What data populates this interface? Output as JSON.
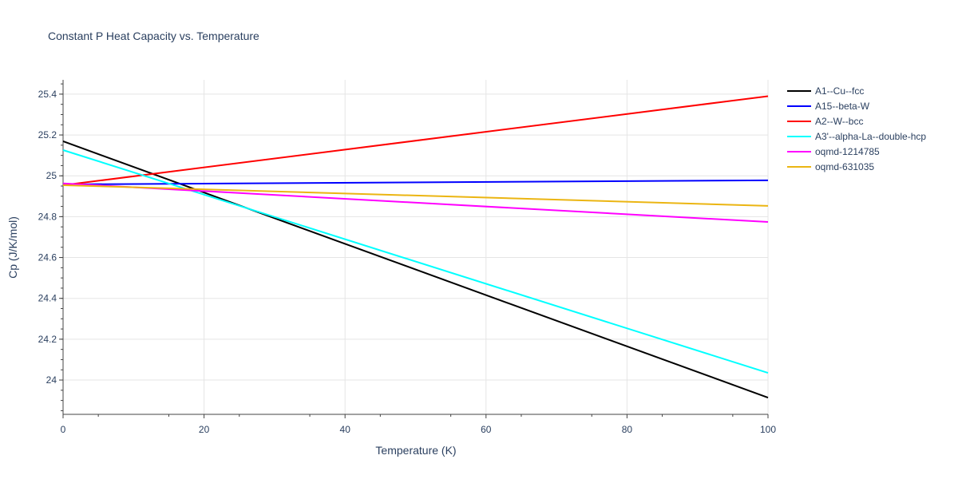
{
  "chart_data": {
    "type": "line",
    "title": "Constant P Heat Capacity vs. Temperature",
    "xlabel": "Temperature (K)",
    "ylabel": "Cp (J/K/mol)",
    "xlim": [
      0,
      100
    ],
    "ylim": [
      23.832,
      25.47
    ],
    "xticks": [
      0,
      20,
      40,
      60,
      80,
      100
    ],
    "xtick_labels": [
      "0",
      "20",
      "40",
      "60",
      "80",
      "100"
    ],
    "yticks": [
      24,
      24.2,
      24.4,
      24.6,
      24.8,
      25,
      25.2,
      25.4
    ],
    "ytick_labels": [
      "24",
      "24.2",
      "24.4",
      "24.6",
      "24.8",
      "25",
      "25.2",
      "25.4"
    ],
    "grid": true,
    "legend_position": "right",
    "series": [
      {
        "name": "A1--Cu--fcc",
        "color": "#000000",
        "x": [
          0,
          100
        ],
        "y": [
          25.169,
          23.914
        ]
      },
      {
        "name": "A15--beta-W",
        "color": "#0000ff",
        "x": [
          0,
          100
        ],
        "y": [
          24.958,
          24.978
        ]
      },
      {
        "name": "A2--W--bcc",
        "color": "#ff0000",
        "x": [
          0,
          100
        ],
        "y": [
          24.954,
          25.39
        ]
      },
      {
        "name": "A3'--alpha-La--double-hcp",
        "color": "#00ffff",
        "x": [
          0,
          100
        ],
        "y": [
          25.126,
          24.035
        ]
      },
      {
        "name": "oqmd-1214785",
        "color": "#ff00ff",
        "x": [
          0,
          100
        ],
        "y": [
          24.963,
          24.774
        ]
      },
      {
        "name": "oqmd-631035",
        "color": "#ebb512",
        "x": [
          0,
          100
        ],
        "y": [
          24.954,
          24.853
        ]
      }
    ]
  }
}
